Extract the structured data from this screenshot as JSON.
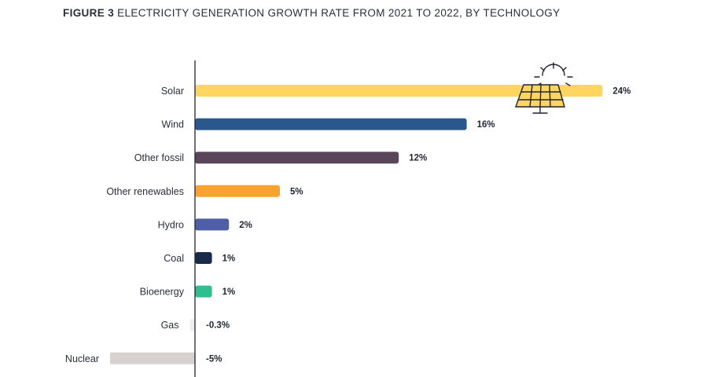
{
  "figure": {
    "number_label": "FIGURE 3",
    "title": "ELECTRICITY GENERATION GROWTH RATE FROM 2021 TO 2022, BY TECHNOLOGY"
  },
  "chart_data": {
    "type": "bar",
    "orientation": "horizontal",
    "title": "FIGURE 3 ELECTRICITY GENERATION GROWTH RATE FROM 2021 TO 2022, BY TECHNOLOGY",
    "xlabel": "",
    "ylabel": "",
    "unit": "%",
    "grid": false,
    "legend": "none",
    "categories": [
      "Solar",
      "Wind",
      "Other fossil",
      "Other renewables",
      "Hydro",
      "Coal",
      "Bioenergy",
      "Gas",
      "Nuclear"
    ],
    "values": [
      24,
      16,
      12,
      5,
      2,
      1,
      1,
      -0.3,
      -5
    ],
    "value_labels": [
      "24%",
      "16%",
      "12%",
      "5%",
      "2%",
      "1%",
      "1%",
      "-0.3%",
      "-5%"
    ],
    "colors": [
      "#fdd55f",
      "#2b588c",
      "#59465b",
      "#f9a22f",
      "#4f5ea7",
      "#172b4b",
      "#30bd8f",
      "#eeeeee",
      "#d7d2cf"
    ],
    "icon": "solar-panel-sun-icon"
  }
}
